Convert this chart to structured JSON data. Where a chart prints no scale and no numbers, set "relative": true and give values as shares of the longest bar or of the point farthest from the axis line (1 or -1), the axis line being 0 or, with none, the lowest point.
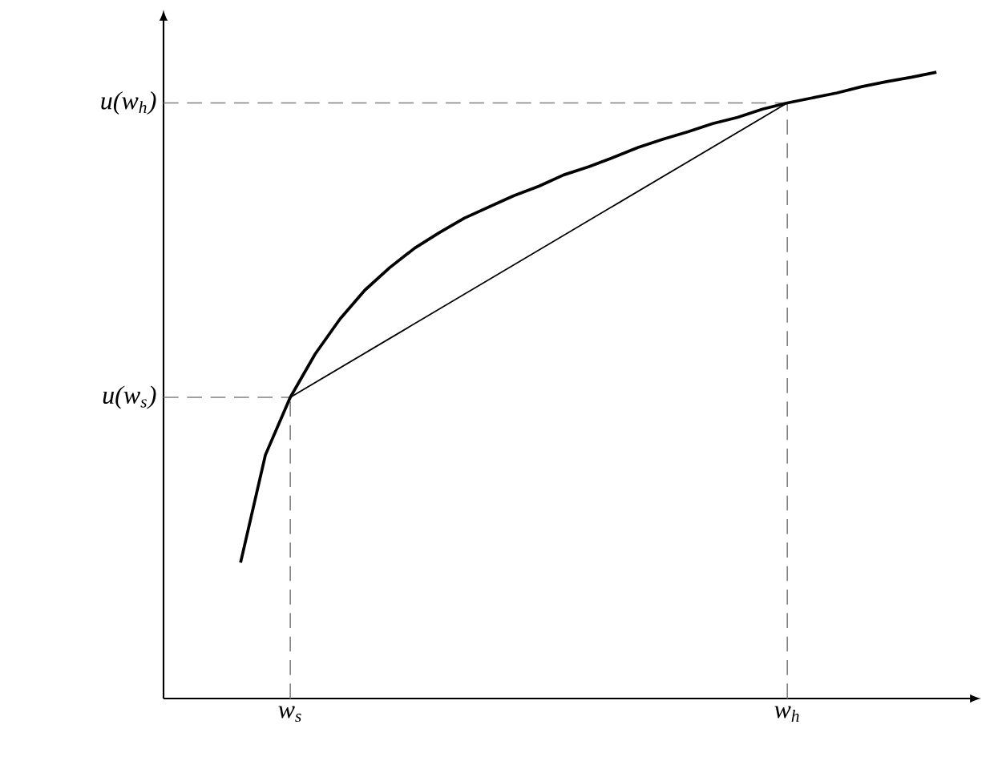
{
  "chart_data": {
    "type": "line",
    "relative": true,
    "categories": [
      null,
      null,
      "w$_{s}$",
      null,
      null,
      null,
      null,
      null,
      null,
      null,
      null,
      null,
      null,
      null,
      null,
      null,
      null,
      null,
      null,
      null,
      null,
      null,
      "w$_{h}$",
      null,
      null,
      null,
      null,
      null,
      null
    ],
    "series": [
      {
        "color": "#000000",
        "values": [
          0.217,
          0.389,
          0.481,
          0.55,
          0.606,
          0.652,
          0.688,
          0.719,
          0.744,
          0.767,
          0.785,
          0.803,
          0.818,
          0.836,
          0.849,
          0.864,
          0.88,
          0.893,
          0.905,
          0.918,
          0.928,
          0.941,
          0.951,
          0.959,
          0.967,
          0.977,
          0.985,
          0.992,
          1.0
        ]
      },
      {
        "color": "#000000",
        "values": [
          null,
          null,
          0.481,
          null,
          null,
          null,
          null,
          null,
          null,
          null,
          null,
          null,
          null,
          null,
          null,
          null,
          null,
          null,
          null,
          null,
          null,
          null,
          0.951,
          null,
          null,
          null,
          null,
          null,
          null
        ]
      }
    ],
    "ref_lines": [
      {
        "axis": "x",
        "value": "w$_{s}$",
        "color": "#808080",
        "line_style": "dashed"
      },
      {
        "axis": "x",
        "value": "w$_{h}$",
        "color": "#808080",
        "line_style": "dashed"
      },
      {
        "axis": "y",
        "value": 0.481,
        "label": "u(w$_{s}$)",
        "color": "#808080",
        "line_style": "dashed"
      },
      {
        "axis": "y",
        "value": 0.951,
        "label": "u(w$_{h}$)",
        "color": "#808080",
        "line_style": "dashed"
      }
    ],
    "marker": "none",
    "line_style": "solid"
  }
}
